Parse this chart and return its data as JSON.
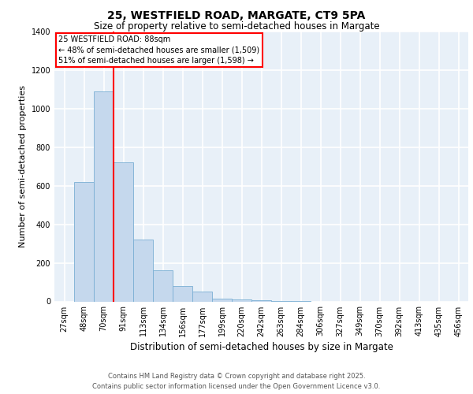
{
  "title": "25, WESTFIELD ROAD, MARGATE, CT9 5PA",
  "subtitle": "Size of property relative to semi-detached houses in Margate",
  "xlabel": "Distribution of semi-detached houses by size in Margate",
  "ylabel": "Number of semi-detached properties",
  "annotation_title": "25 WESTFIELD ROAD: 88sqm",
  "annotation_line1": "← 48% of semi-detached houses are smaller (1,509)",
  "annotation_line2": "51% of semi-detached houses are larger (1,598) →",
  "footer_line1": "Contains HM Land Registry data © Crown copyright and database right 2025.",
  "footer_line2": "Contains public sector information licensed under the Open Government Licence v3.0.",
  "bin_labels": [
    "27sqm",
    "48sqm",
    "70sqm",
    "91sqm",
    "113sqm",
    "134sqm",
    "156sqm",
    "177sqm",
    "199sqm",
    "220sqm",
    "242sqm",
    "263sqm",
    "284sqm",
    "306sqm",
    "327sqm",
    "349sqm",
    "370sqm",
    "392sqm",
    "413sqm",
    "435sqm",
    "456sqm"
  ],
  "bar_values": [
    0,
    620,
    1090,
    720,
    320,
    160,
    80,
    50,
    15,
    10,
    5,
    2,
    1,
    0,
    0,
    0,
    0,
    0,
    0,
    0,
    0
  ],
  "bar_color": "#c5d8ed",
  "bar_edge_color": "#7aafd4",
  "red_line_bin_index": 2.5,
  "ylim": [
    0,
    1400
  ],
  "yticks": [
    0,
    200,
    400,
    600,
    800,
    1000,
    1200,
    1400
  ],
  "background_color": "#e8f0f8",
  "grid_color": "#ffffff",
  "title_fontsize": 10,
  "subtitle_fontsize": 8.5,
  "ylabel_fontsize": 8,
  "xlabel_fontsize": 8.5,
  "tick_fontsize": 7,
  "annotation_fontsize": 7,
  "footer_fontsize": 6
}
